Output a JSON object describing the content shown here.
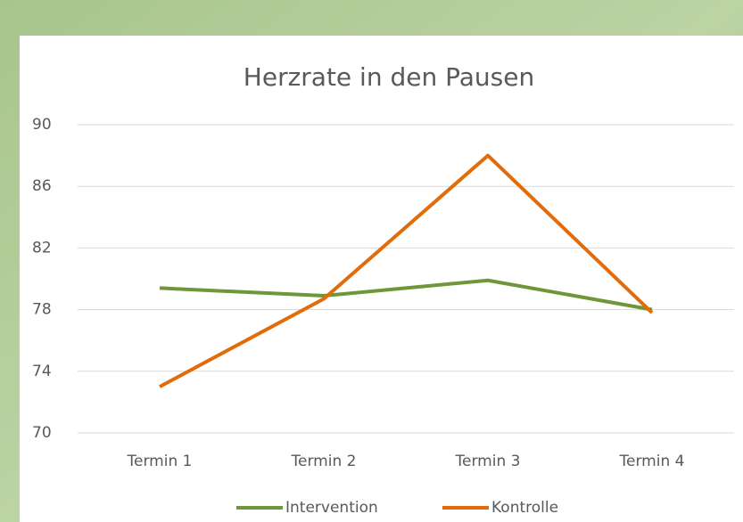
{
  "chart_data": {
    "type": "line",
    "title": "Herzrate in den Pausen",
    "categories": [
      "Termin 1",
      "Termin 2",
      "Termin 3",
      "Termin 4"
    ],
    "series": [
      {
        "name": "Intervention",
        "color": "#70963a",
        "values": [
          79.4,
          78.9,
          79.9,
          78.0
        ]
      },
      {
        "name": "Kontrolle",
        "color": "#e26b0a",
        "values": [
          73.0,
          78.7,
          88.0,
          77.8
        ]
      }
    ],
    "ylim": [
      70,
      90
    ],
    "yticks": [
      70,
      74,
      78,
      82,
      86,
      90
    ],
    "grid": true,
    "legend": "bottom"
  }
}
